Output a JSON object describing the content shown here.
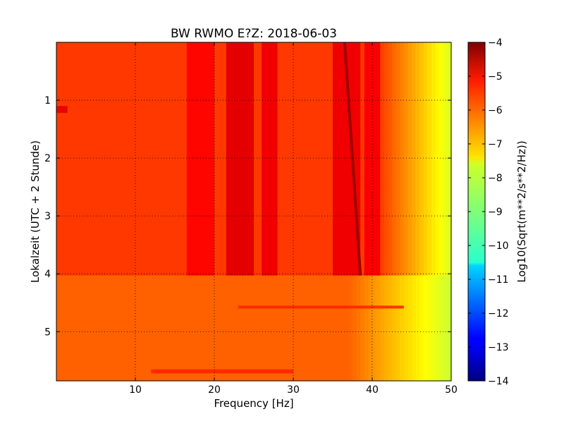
{
  "chart_data": {
    "type": "heatmap",
    "title": "BW RWMO E?Z: 2018-06-03",
    "xlabel": "Frequency [Hz]",
    "ylabel": "Lokalzeit (UTC + 2 Stunde)",
    "xlim": [
      0,
      50
    ],
    "ylim": [
      5.85,
      0
    ],
    "x_ticks": [
      10,
      20,
      30,
      40,
      50
    ],
    "y_ticks": [
      1,
      2,
      3,
      4,
      5
    ],
    "grid": true,
    "colorbar": {
      "label": "Log10(Sqrt(m**2/s**2/Hz))",
      "range": [
        -14,
        -4
      ],
      "ticks": [
        -4,
        -5,
        -6,
        -7,
        -8,
        -9,
        -10,
        -11,
        -12,
        -13,
        -14
      ],
      "tick_labels": [
        "−4",
        "−5",
        "−6",
        "−7",
        "−8",
        "−9",
        "−10",
        "−11",
        "−12",
        "−13",
        "−14"
      ],
      "colormap": "jet"
    },
    "time_segments": [
      {
        "t_start": 0,
        "t_end": 4.03,
        "base_level": -5.8,
        "rolloff_start_hz": 41,
        "rolloff_rate_per_hz": 0.26
      },
      {
        "t_start": 4.03,
        "t_end": 5.85,
        "base_level": -6.2,
        "rolloff_start_hz": 37,
        "rolloff_rate_per_hz": 0.16
      }
    ],
    "bands": [
      {
        "f_start": 16.5,
        "f_end": 20,
        "level": -5.3,
        "t_end": 4.03
      },
      {
        "f_start": 21.5,
        "f_end": 25,
        "level": -5.0,
        "t_end": 4.03
      },
      {
        "f_start": 26,
        "f_end": 28,
        "level": -5.1,
        "t_end": 4.03
      },
      {
        "f_start": 35,
        "f_end": 38.5,
        "level": -5.1,
        "t_end": 4.03
      },
      {
        "f_start": 39,
        "f_end": 41,
        "level": -5.2,
        "t_end": 4.03
      }
    ],
    "tones": [
      {
        "f_start": 36.5,
        "t_start": 0,
        "f_end": 38.5,
        "t_end": 4.03,
        "level": -4.3
      }
    ],
    "features": [
      {
        "f_start": 0,
        "f_end": 1.4,
        "t_start": 1.1,
        "t_end": 1.22,
        "level": -5.0
      },
      {
        "f_start": 23,
        "f_end": 44,
        "t_start": 4.55,
        "t_end": 4.6,
        "level": -5.6
      },
      {
        "f_start": 12,
        "f_end": 30,
        "t_start": 5.65,
        "t_end": 5.72,
        "level": -5.6
      }
    ]
  }
}
